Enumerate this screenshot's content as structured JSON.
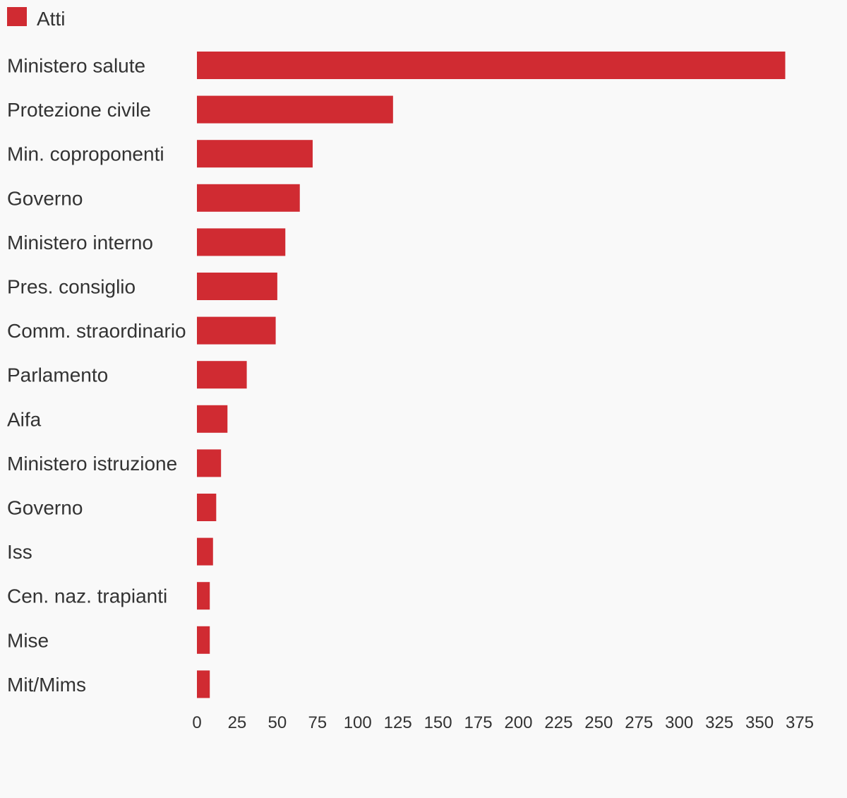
{
  "chart_data": {
    "type": "bar",
    "orientation": "horizontal",
    "categories": [
      "Ministero salute",
      "Protezione civile",
      "Min. coproponenti",
      "Governo",
      "Ministero interno",
      "Pres. consiglio",
      "Comm. straordinario",
      "Parlamento",
      "Aifa",
      "Ministero istruzione",
      "Governo",
      "Iss",
      "Cen. naz. trapianti",
      "Mise",
      "Mit/Mims"
    ],
    "series": [
      {
        "name": "Atti",
        "color": "#d02b32",
        "values": [
          366,
          122,
          72,
          64,
          55,
          50,
          49,
          31,
          19,
          15,
          12,
          10,
          8,
          8,
          8
        ]
      }
    ],
    "xlim": [
      0,
      375
    ],
    "xticks": [
      0,
      25,
      50,
      75,
      100,
      125,
      150,
      175,
      200,
      225,
      250,
      275,
      300,
      325,
      350,
      375
    ],
    "title": "",
    "xlabel": "",
    "ylabel": "",
    "grid": false,
    "legend_position": "top-left"
  }
}
